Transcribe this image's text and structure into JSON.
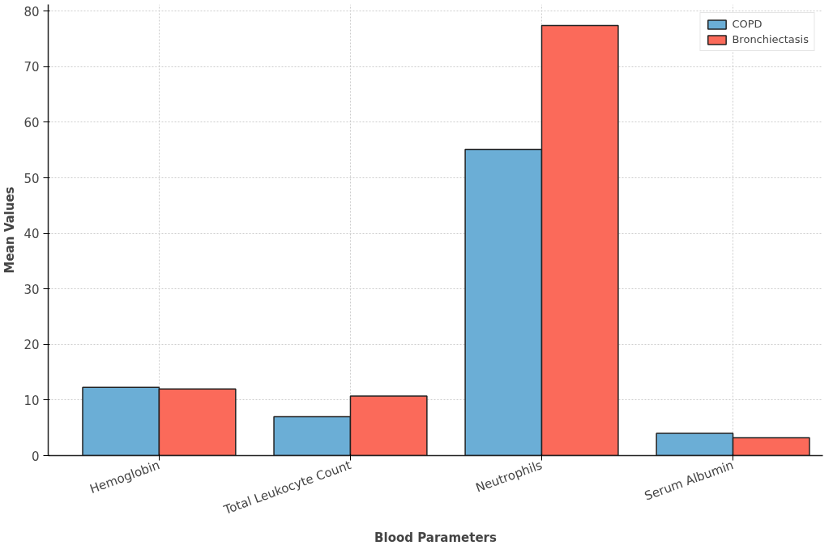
{
  "chart_data": {
    "type": "bar",
    "xlabel": "Blood Parameters",
    "ylabel": "Mean Values",
    "categories": [
      "Hemoglobin",
      "Total Leukocyte Count",
      "Neutrophils",
      "Serum Albumin"
    ],
    "series": [
      {
        "name": "COPD",
        "color": "#6baed6",
        "values": [
          12.3,
          7.0,
          55.1,
          4.0
        ]
      },
      {
        "name": "Bronchiectasis",
        "color": "#fb6a5a",
        "values": [
          12.0,
          10.7,
          77.4,
          3.2
        ]
      }
    ],
    "ylim": [
      0,
      81.2
    ],
    "yticks": [
      0,
      10,
      20,
      30,
      40,
      50,
      60,
      70,
      80
    ],
    "grid": true,
    "legend": "top right"
  }
}
